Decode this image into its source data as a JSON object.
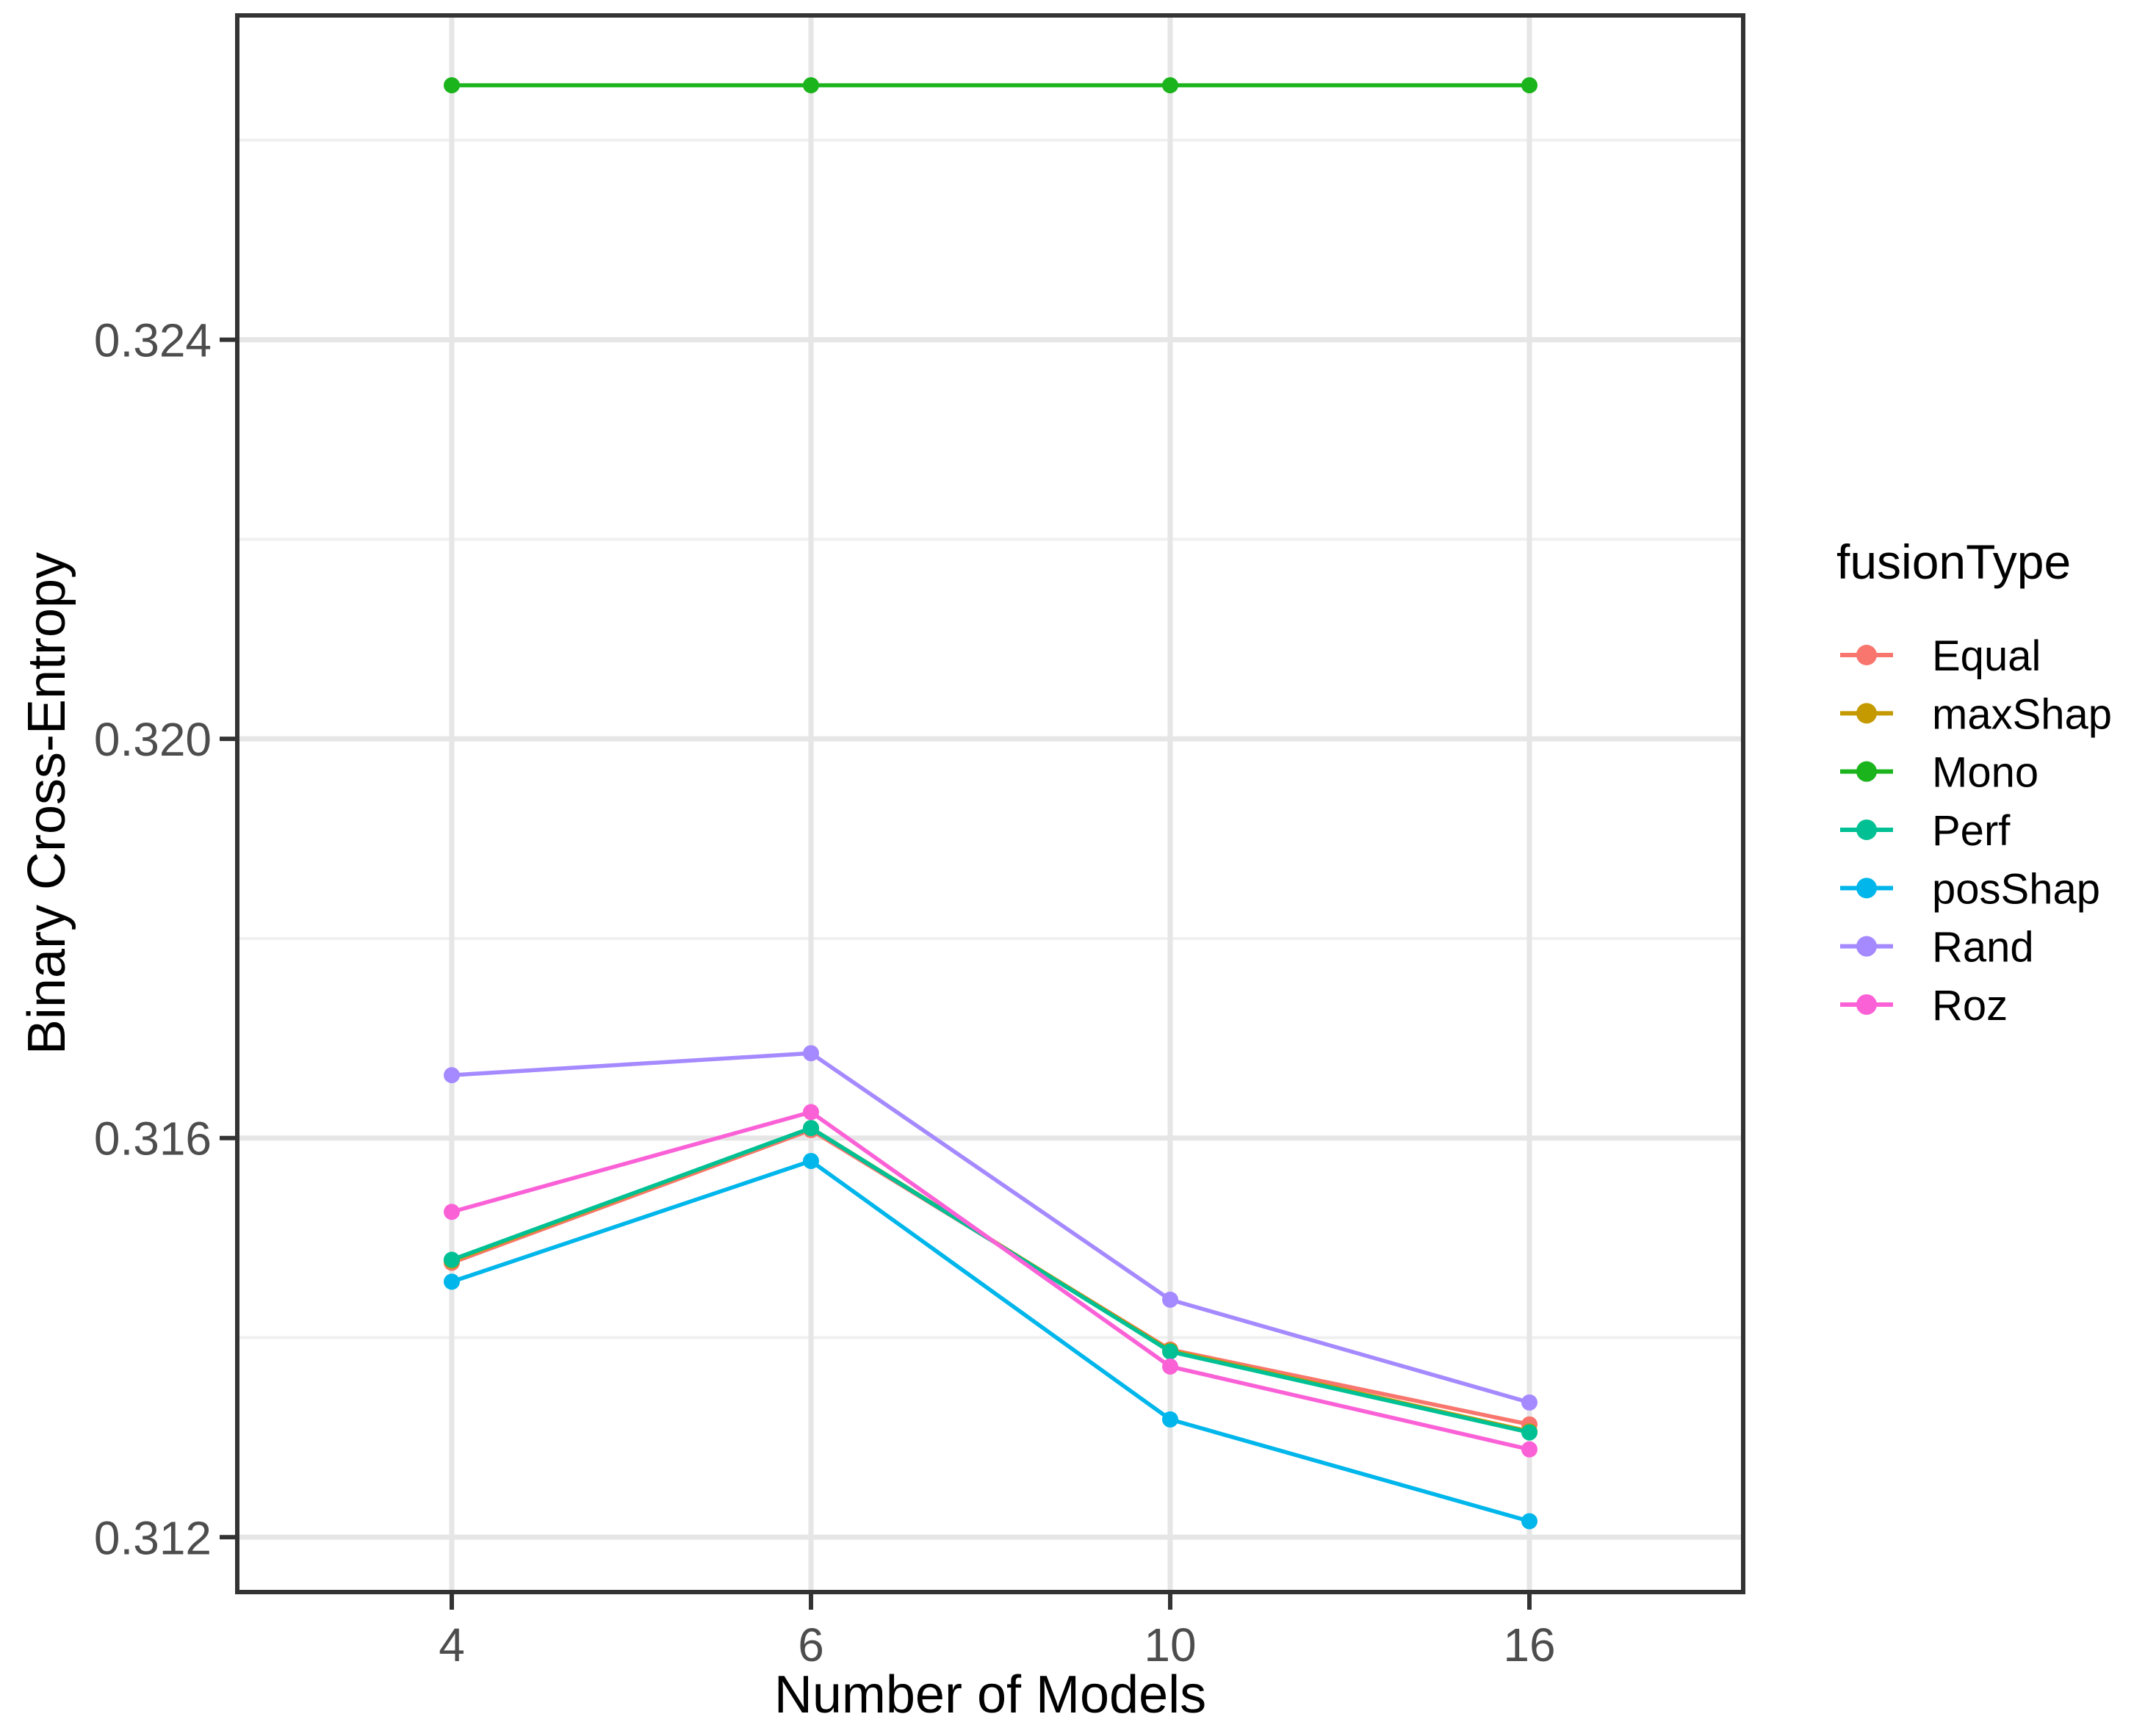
{
  "chart_data": {
    "type": "line",
    "title": "",
    "xlabel": "Number of Models",
    "ylabel": "Binary Cross-Entropy",
    "legend_title": "fusionType",
    "legend_position": "right",
    "categories": [
      "4",
      "6",
      "10",
      "16"
    ],
    "series": [
      {
        "name": "Equal",
        "color": "#F8766D",
        "values": [
          0.31475,
          0.31608,
          0.31388,
          0.31313
        ]
      },
      {
        "name": "maxShap",
        "color": "#C49A00",
        "values": [
          0.31477,
          0.3161,
          0.31387,
          0.31306
        ]
      },
      {
        "name": "Mono",
        "color": "#1CB41C",
        "values": [
          0.32655,
          0.32655,
          0.32655,
          0.32655
        ]
      },
      {
        "name": "Perf",
        "color": "#00C094",
        "values": [
          0.31478,
          0.3161,
          0.31386,
          0.31305
        ]
      },
      {
        "name": "posShap",
        "color": "#00B6EB",
        "values": [
          0.31456,
          0.31577,
          0.31318,
          0.31216
        ]
      },
      {
        "name": "Rand",
        "color": "#A58AFF",
        "values": [
          0.31663,
          0.31685,
          0.31438,
          0.31335
        ]
      },
      {
        "name": "Roz",
        "color": "#FB61D7",
        "values": [
          0.31526,
          0.31626,
          0.31371,
          0.31288
        ]
      }
    ],
    "y_ticks": [
      0.312,
      0.316,
      0.32,
      0.324
    ],
    "y_tick_labels": [
      "0.312",
      "0.316",
      "0.320",
      "0.324"
    ],
    "y_minor_ticks": [
      0.314,
      0.318,
      0.322,
      0.326
    ],
    "ylim": [
      0.31145,
      0.32725
    ],
    "grid": true
  },
  "style": {
    "background": "#FFFFFF",
    "panel_border": "#333333",
    "tick_color": "#333333",
    "axis_text_color": "#4D4D4D",
    "axis_title_color": "#000000",
    "grid_major_color": "#E6E6E6",
    "grid_minor_color": "#F0F0F0"
  }
}
